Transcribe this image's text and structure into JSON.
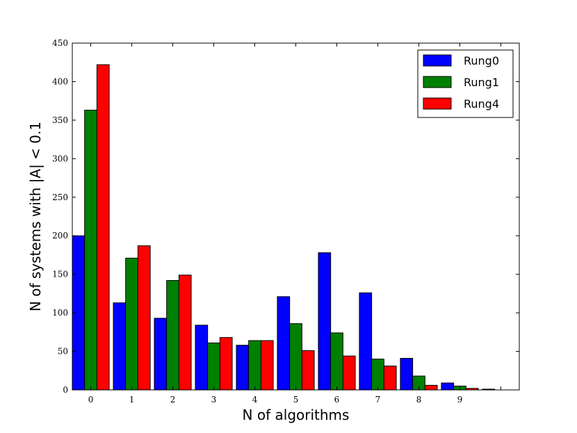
{
  "chart_data": {
    "type": "bar",
    "xlabel": "N of algorithms",
    "ylabel": "N of systems with |A| < 0.1",
    "categories": [
      "0",
      "1",
      "2",
      "3",
      "4",
      "5",
      "6",
      "7",
      "8",
      "9",
      ""
    ],
    "ylim": [
      0,
      450
    ],
    "yticks": [
      0,
      50,
      100,
      150,
      200,
      250,
      300,
      350,
      400,
      450
    ],
    "grid": false,
    "legend_position": "top-right",
    "series": [
      {
        "name": "Rung0",
        "color": "#0000ff",
        "values": [
          200,
          113,
          93,
          84,
          58,
          121,
          178,
          126,
          41,
          9,
          1
        ]
      },
      {
        "name": "Rung1",
        "color": "#008000",
        "values": [
          363,
          171,
          142,
          61,
          64,
          86,
          74,
          40,
          18,
          5,
          0
        ]
      },
      {
        "name": "Rung4",
        "color": "#ff0000",
        "values": [
          422,
          187,
          149,
          68,
          64,
          51,
          44,
          31,
          6,
          2,
          0
        ]
      }
    ]
  }
}
